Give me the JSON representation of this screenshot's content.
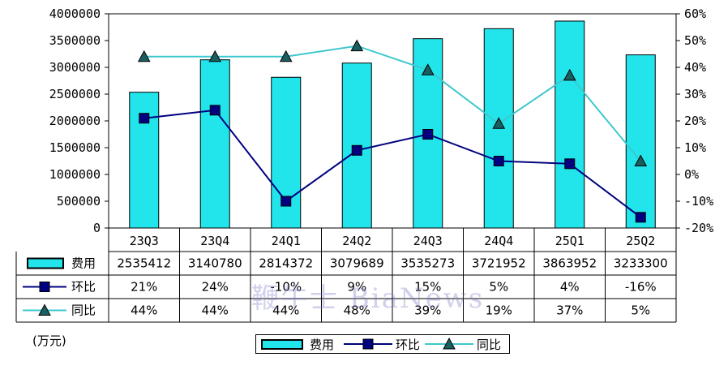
{
  "chart_data": {
    "type": "bar",
    "categories": [
      "23Q3",
      "23Q4",
      "24Q1",
      "24Q2",
      "24Q3",
      "24Q4",
      "25Q1",
      "25Q2"
    ],
    "series": [
      {
        "name": "费用",
        "type": "bar",
        "axis": "left",
        "values": [
          2535412,
          3140780,
          2814372,
          3079689,
          3535273,
          3721952,
          3863952,
          3233300
        ],
        "labels": [
          "2535412",
          "3140780",
          "2814372",
          "3079689",
          "3535273",
          "3721952",
          "3863952",
          "3233300"
        ]
      },
      {
        "name": "环比",
        "type": "line",
        "axis": "right",
        "unit": "%",
        "values": [
          21,
          24,
          -10,
          9,
          15,
          5,
          4,
          -16
        ],
        "labels": [
          "21%",
          "24%",
          "-10%",
          "9%",
          "15%",
          "5%",
          "4%",
          "-16%"
        ]
      },
      {
        "name": "同比",
        "type": "line",
        "axis": "right",
        "unit": "%",
        "values": [
          44,
          44,
          44,
          48,
          39,
          19,
          37,
          5
        ],
        "labels": [
          "44%",
          "44%",
          "44%",
          "48%",
          "39%",
          "19%",
          "37%",
          "5%"
        ]
      }
    ],
    "y_left": {
      "ylim": [
        0,
        4000000
      ],
      "ticks": [
        "0",
        "500000",
        "1000000",
        "1500000",
        "2000000",
        "2500000",
        "3000000",
        "3500000",
        "4000000"
      ]
    },
    "y_right": {
      "ylim": [
        -20,
        60
      ],
      "ticks": [
        "-20%",
        "-10%",
        "0%",
        "10%",
        "20%",
        "30%",
        "40%",
        "50%",
        "60%"
      ]
    },
    "data_table": true,
    "legend_position": "bottom",
    "grid": false,
    "unit_label": "(万元)",
    "watermark": "鞭牛士 BiaNews"
  },
  "colors": {
    "bar": "#22E5EC",
    "huanbi": "#000080",
    "tongbi": "#3EC8CC",
    "axis": "#000000"
  }
}
